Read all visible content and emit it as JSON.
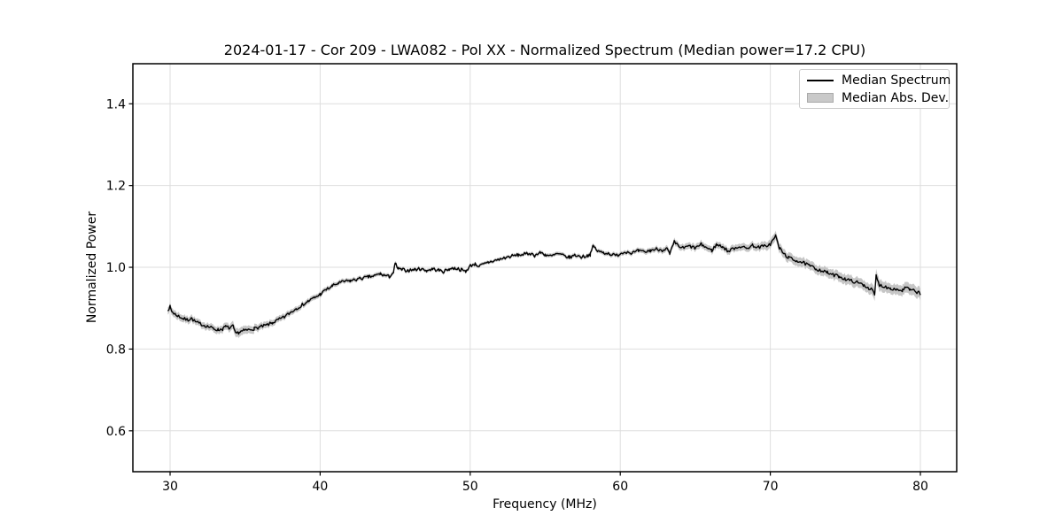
{
  "chart_data": {
    "type": "line",
    "title": "2024-01-17 - Cor 209 - LWA082 - Pol XX - Normalized Spectrum (Median power=17.2 CPU)",
    "xlabel": "Frequency (MHz)",
    "ylabel": "Normalized Power",
    "xlim": [
      27.52,
      82.42
    ],
    "ylim": [
      0.5,
      1.498
    ],
    "xticks": [
      30,
      40,
      50,
      60,
      70,
      80
    ],
    "yticks": [
      0.6,
      0.8,
      1.0,
      1.2,
      1.4
    ],
    "grid": true,
    "legend_position": "upper right",
    "legend": [
      {
        "label": "Median Spectrum",
        "type": "line",
        "color": "#000000"
      },
      {
        "label": "Median Abs. Dev.",
        "type": "patch",
        "color": "#c9c9c9"
      }
    ],
    "colors": {
      "line": "#000000",
      "band": "#c6c6c6",
      "grid": "#dedede",
      "spine": "#000000",
      "text": "#000000"
    },
    "noise": {
      "amplitude": 0.004,
      "step": 0.08,
      "seed": 7
    },
    "series": [
      {
        "name": "Median Spectrum",
        "x": [
          29.85,
          30.0,
          30.1,
          30.3,
          30.6,
          30.9,
          31.2,
          31.4,
          31.7,
          32.0,
          32.3,
          32.6,
          32.9,
          33.2,
          33.5,
          33.7,
          34.0,
          34.2,
          34.35,
          34.6,
          34.9,
          35.2,
          35.6,
          36.0,
          36.4,
          36.8,
          37.2,
          37.6,
          38.0,
          38.4,
          38.8,
          39.2,
          39.6,
          40.0,
          40.4,
          40.8,
          41.2,
          41.6,
          42.0,
          42.4,
          42.8,
          43.2,
          43.6,
          44.0,
          44.3,
          44.6,
          44.9,
          45.0,
          45.2,
          45.5,
          45.9,
          46.3,
          46.7,
          47.1,
          47.5,
          47.9,
          48.2,
          48.6,
          49.0,
          49.4,
          49.7,
          50.0,
          50.3,
          50.6,
          50.9,
          51.2,
          51.6,
          52.0,
          52.4,
          52.8,
          53.2,
          53.6,
          54.0,
          54.3,
          54.7,
          55.0,
          55.4,
          55.8,
          56.2,
          56.6,
          57.0,
          57.4,
          57.8,
          58.0,
          58.2,
          58.5,
          58.9,
          59.3,
          59.7,
          60.0,
          60.4,
          60.8,
          61.2,
          61.6,
          62.0,
          62.4,
          62.8,
          63.1,
          63.3,
          63.6,
          63.9,
          64.2,
          64.6,
          65.0,
          65.4,
          65.8,
          66.1,
          66.4,
          66.8,
          67.2,
          67.6,
          68.0,
          68.4,
          68.8,
          69.2,
          69.6,
          70.0,
          70.35,
          70.6,
          70.9,
          71.2,
          71.5,
          71.8,
          72.2,
          72.6,
          73.0,
          73.4,
          73.8,
          74.2,
          74.6,
          75.0,
          75.4,
          75.8,
          76.2,
          76.5,
          76.8,
          76.95,
          77.05,
          77.25,
          77.6,
          78.0,
          78.4,
          78.8,
          79.0,
          79.3,
          79.6,
          79.9,
          80.0
        ],
        "y": [
          0.897,
          0.903,
          0.893,
          0.886,
          0.88,
          0.874,
          0.871,
          0.876,
          0.866,
          0.862,
          0.858,
          0.854,
          0.85,
          0.847,
          0.849,
          0.855,
          0.851,
          0.856,
          0.838,
          0.841,
          0.845,
          0.847,
          0.85,
          0.854,
          0.858,
          0.864,
          0.871,
          0.878,
          0.889,
          0.899,
          0.908,
          0.917,
          0.925,
          0.934,
          0.945,
          0.954,
          0.961,
          0.965,
          0.967,
          0.97,
          0.973,
          0.976,
          0.979,
          0.984,
          0.98,
          0.977,
          0.988,
          1.01,
          0.996,
          0.994,
          0.992,
          0.995,
          0.996,
          0.992,
          0.996,
          0.993,
          0.989,
          0.996,
          0.998,
          0.994,
          0.99,
          1.004,
          1.008,
          1.003,
          1.007,
          1.012,
          1.016,
          1.02,
          1.024,
          1.028,
          1.03,
          1.032,
          1.034,
          1.029,
          1.036,
          1.031,
          1.027,
          1.033,
          1.029,
          1.024,
          1.03,
          1.025,
          1.029,
          1.031,
          1.053,
          1.039,
          1.036,
          1.033,
          1.028,
          1.034,
          1.038,
          1.035,
          1.04,
          1.037,
          1.041,
          1.045,
          1.042,
          1.046,
          1.032,
          1.062,
          1.051,
          1.047,
          1.052,
          1.047,
          1.056,
          1.047,
          1.041,
          1.055,
          1.051,
          1.039,
          1.047,
          1.051,
          1.046,
          1.054,
          1.049,
          1.052,
          1.056,
          1.077,
          1.047,
          1.033,
          1.024,
          1.019,
          1.016,
          1.011,
          1.004,
          0.997,
          0.992,
          0.987,
          0.981,
          0.978,
          0.971,
          0.967,
          0.963,
          0.957,
          0.951,
          0.944,
          0.931,
          0.979,
          0.957,
          0.953,
          0.949,
          0.946,
          0.943,
          0.951,
          0.945,
          0.942,
          0.938,
          0.934
        ]
      }
    ],
    "band": {
      "name": "Median Abs. Dev.",
      "x": [
        29.85,
        32.0,
        34.0,
        34.35,
        36.0,
        38.0,
        40.0,
        43.0,
        46.0,
        50.0,
        54.0,
        58.0,
        61.0,
        63.0,
        65.0,
        67.0,
        69.0,
        70.35,
        71.5,
        73.0,
        75.0,
        76.5,
        76.95,
        78.0,
        79.0,
        80.0
      ],
      "halfwidth": [
        0.009,
        0.008,
        0.009,
        0.011,
        0.008,
        0.007,
        0.006,
        0.005,
        0.0045,
        0.004,
        0.0045,
        0.005,
        0.0055,
        0.007,
        0.008,
        0.008,
        0.009,
        0.011,
        0.011,
        0.011,
        0.012,
        0.012,
        0.015,
        0.012,
        0.013,
        0.014
      ]
    }
  }
}
